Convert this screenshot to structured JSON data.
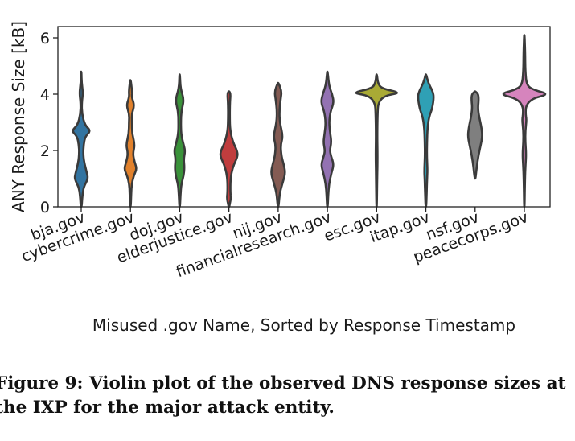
{
  "chart_data": {
    "type": "violin",
    "xlabel": "Misused .gov Name, Sorted by Response Timestamp",
    "ylabel": "ANY Response Size [kB]",
    "ylim": [
      0,
      6.4
    ],
    "yticks": [
      0,
      2,
      4,
      6
    ],
    "grid": false,
    "categories": [
      "bja.gov",
      "cybercrime.gov",
      "doj.gov",
      "elderjustice.gov",
      "nij.gov",
      "financialresearch.gov",
      "esc.gov",
      "itap.gov",
      "nsf.gov",
      "peacecorps.gov"
    ],
    "series": [
      {
        "category": "bja.gov",
        "color": "#3274a1",
        "min": 0,
        "max": 4.8,
        "peaks": [
          2.7,
          1.0,
          4.05
        ]
      },
      {
        "category": "cybercrime.gov",
        "color": "#e1812c",
        "min": 0,
        "max": 4.5,
        "peaks": [
          3.6,
          2.2,
          1.4,
          4.0
        ]
      },
      {
        "category": "doj.gov",
        "color": "#3a923a",
        "min": 0,
        "max": 4.7,
        "peaks": [
          3.8,
          2.0,
          1.2
        ]
      },
      {
        "category": "elderjustice.gov",
        "color": "#c03d3e",
        "min": 0,
        "max": 4.1,
        "peaks": [
          1.9,
          0.3,
          4.0
        ]
      },
      {
        "category": "nij.gov",
        "color": "#845b53",
        "min": 0,
        "max": 4.4,
        "peaks": [
          4.0,
          2.5,
          1.2
        ]
      },
      {
        "category": "financialresearch.gov",
        "color": "#9372b2",
        "min": 0,
        "max": 4.8,
        "peaks": [
          3.8,
          2.3,
          1.5
        ]
      },
      {
        "category": "esc.gov",
        "color": "#a9aa35",
        "min": 0,
        "max": 4.7,
        "peaks": [
          4.05
        ]
      },
      {
        "category": "itap.gov",
        "color": "#2fa0b5",
        "min": 0,
        "max": 4.7,
        "peaks": [
          3.9,
          1.2
        ]
      },
      {
        "category": "nsf.gov",
        "color": "#7f7f7f",
        "min": 1.0,
        "max": 4.1,
        "peaks": [
          2.5
        ]
      },
      {
        "category": "peacecorps.gov",
        "color": "#d684bd",
        "min": 0,
        "max": 6.1,
        "peaks": [
          4.0,
          3.1,
          1.9
        ]
      }
    ]
  },
  "caption": {
    "line1": "Figure 9: Violin plot of the observed DNS response sizes at",
    "line2": "the IXP for the major attack entity."
  }
}
